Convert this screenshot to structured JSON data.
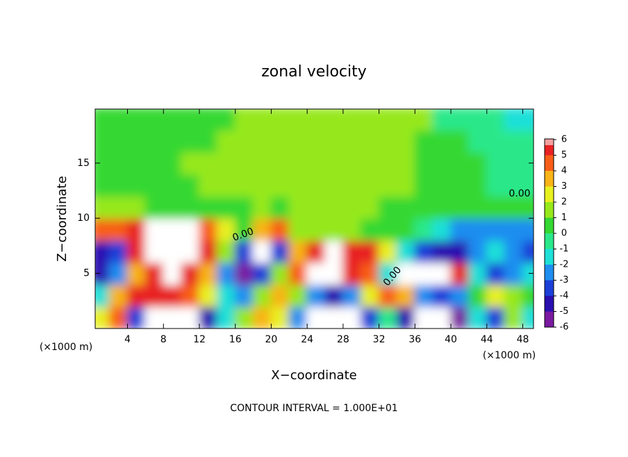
{
  "chart_data": {
    "type": "heatmap",
    "title": "zonal velocity",
    "xlabel": "X−coordinate",
    "ylabel": "Z−coordinate",
    "x_unit_left": "(×1000 m)",
    "x_unit_right": "(×1000 m)",
    "footnote": "CONTOUR INTERVAL = 1.000E+01",
    "contour_labels": [
      "0.00",
      "0.00",
      "0.00"
    ],
    "x": [
      1,
      3,
      5,
      7,
      9,
      11,
      13,
      15,
      17,
      19,
      21,
      23,
      25,
      27,
      29,
      31,
      33,
      35,
      37,
      39,
      41,
      43,
      45,
      47,
      49
    ],
    "y": [
      1,
      3,
      5,
      7,
      9,
      11,
      13,
      15,
      17,
      19
    ],
    "z": [
      [
        2,
        4,
        -4,
        -7,
        -7,
        -7,
        -5,
        -2,
        1,
        3,
        2,
        -3,
        -7,
        -7,
        -7,
        -4,
        -1,
        -5,
        -7,
        -7,
        -6,
        -2,
        -4,
        1,
        -2
      ],
      [
        -2,
        3,
        5,
        5,
        5,
        4,
        2,
        -2,
        -3,
        1,
        3,
        1,
        -3,
        -5,
        -3,
        2,
        4,
        3,
        -3,
        -4,
        -3,
        0,
        2,
        1,
        0
      ],
      [
        -5,
        -3,
        3,
        6,
        7,
        5,
        3,
        -3,
        -6,
        -4,
        1,
        4,
        7,
        7,
        6,
        4,
        -2,
        7,
        8,
        7,
        5,
        -2,
        -4,
        -3,
        -2
      ],
      [
        -5,
        -4,
        5,
        8,
        8,
        8,
        5,
        1,
        -4,
        -7,
        -4,
        3,
        6,
        7,
        6,
        5,
        2,
        -2,
        -4,
        -5,
        -5,
        -3,
        -2,
        -3,
        -4
      ],
      [
        4,
        4,
        5,
        7,
        7,
        7,
        4,
        2,
        0,
        3,
        4,
        1,
        1,
        1,
        1,
        0,
        0,
        0,
        -1,
        -2,
        -3,
        -3,
        -3,
        -3,
        -3
      ],
      [
        1,
        1,
        1,
        0,
        0,
        0,
        0,
        0,
        0,
        1,
        0,
        1,
        1,
        1,
        1,
        1,
        0,
        0,
        0,
        0,
        0,
        0,
        0,
        0,
        0
      ],
      [
        0,
        0,
        0,
        0,
        0,
        0,
        1,
        1,
        1,
        1,
        1,
        1,
        1,
        1,
        1,
        1,
        1,
        1,
        0,
        0,
        0,
        0,
        -1,
        -1,
        -1
      ],
      [
        0,
        0,
        0,
        0,
        0,
        1,
        1,
        1,
        1,
        1,
        1,
        1,
        1,
        1,
        1,
        1,
        1,
        1,
        0,
        0,
        0,
        0,
        -1,
        -1,
        -1
      ],
      [
        0,
        0,
        0,
        0,
        0,
        0,
        0,
        1,
        1,
        1,
        1,
        1,
        1,
        1,
        1,
        1,
        1,
        1,
        0,
        0,
        0,
        -1,
        -1,
        -1,
        -1
      ],
      [
        0,
        0,
        0,
        0,
        0,
        0,
        0,
        0,
        1,
        1,
        1,
        1,
        1,
        1,
        1,
        1,
        1,
        1,
        1,
        -1,
        -1,
        -1,
        -1,
        -2,
        -2
      ]
    ],
    "xlim": [
      0.4,
      49.2
    ],
    "ylim": [
      0,
      19.9
    ],
    "xticks": [
      4,
      8,
      12,
      16,
      20,
      24,
      28,
      32,
      36,
      40,
      44,
      48
    ],
    "yticks": [
      5,
      10,
      15
    ],
    "colorbar": {
      "ticks": [
        -6,
        -5,
        -4,
        -3,
        -2,
        -1,
        0,
        1,
        2,
        3,
        4,
        5,
        6
      ],
      "colors": [
        "#7a1aa0",
        "#2a0fb0",
        "#1b3fd8",
        "#1e8ef0",
        "#1ee0d8",
        "#2ae88a",
        "#34d832",
        "#96e81a",
        "#e8f020",
        "#f8b418",
        "#f85e18",
        "#e82222"
      ],
      "over_color": "#ffffff",
      "top_color": "#f4a0a0"
    }
  }
}
